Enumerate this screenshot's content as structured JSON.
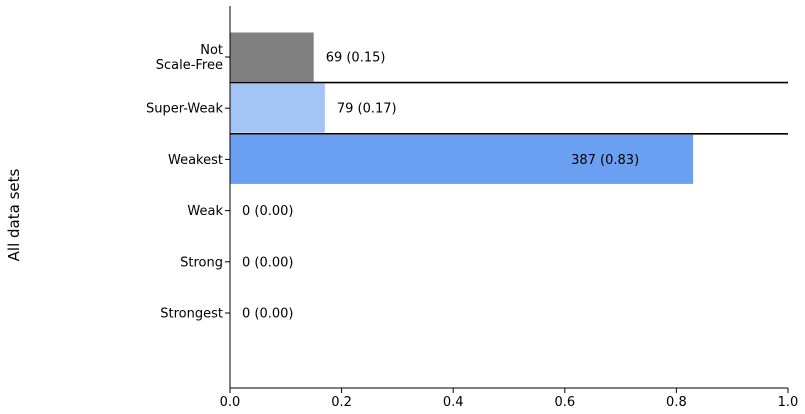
{
  "chart_data": {
    "type": "bar",
    "orientation": "horizontal",
    "ylabel": "All data sets",
    "xlim": [
      0,
      1.0
    ],
    "x_ticks": [
      "0.0",
      "0.2",
      "0.4",
      "0.6",
      "0.8",
      "1.0"
    ],
    "grid": false,
    "categories": [
      "Not\nScale-Free",
      "Super-Weak",
      "Weakest",
      "Weak",
      "Strong",
      "Strongest"
    ],
    "values": [
      0.15,
      0.17,
      0.83,
      0.0,
      0.0,
      0.0
    ],
    "bar_labels": [
      "69 (0.15)",
      "79 (0.17)",
      "387 (0.83)",
      "0 (0.00)",
      "0 (0.00)",
      "0 (0.00)"
    ],
    "colors": [
      "#808080",
      "#a4c4f6",
      "#6b9ff2",
      "#6b9ff2",
      "#6b9ff2",
      "#6b9ff2"
    ],
    "separators_after": [
      "Not\nScale-Free",
      "Super-Weak"
    ]
  }
}
